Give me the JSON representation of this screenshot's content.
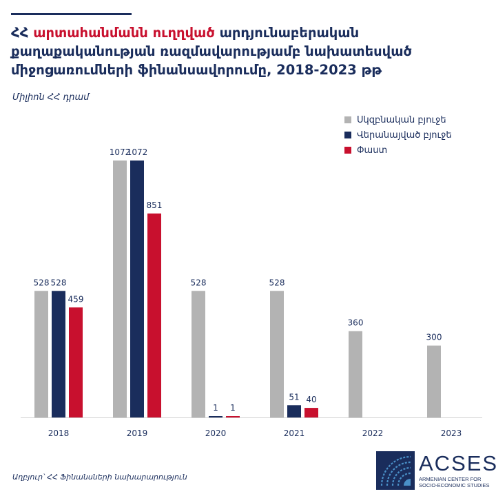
{
  "title": {
    "part1": "ՀՀ ",
    "part2": "արտահանմանն ուղղված",
    "part3": " արդյունաբերական քաղաքականության ռազմավարությամբ նախատեսված միջոցառումների ֆինանսավորումը, 2018-2023 թթ"
  },
  "unit_label": "Միլիոն ՀՀ դրամ",
  "source": "Աղբյուր՝ ՀՀ Ֆինանսների նախարարություն",
  "logo": {
    "name": "ACSES",
    "subtitle": "ARMENIAN CENTER FOR SOCIO-ECONOMIC STUDIES"
  },
  "colors": {
    "accent": "#c8102e",
    "navy": "#1a2d5c",
    "gray": "#b3b3b3"
  },
  "chart_data": {
    "type": "bar",
    "title": "ՀՀ արտահանմանն ուղղված արդյունաբերական քաղաքականության ռազմավարությամբ նախատեսված միջոցառումների ֆինանսավորումը, 2018-2023 թթ",
    "xlabel": "",
    "ylabel": "Միլիոն ՀՀ դրամ",
    "ylim": [
      0,
      1100
    ],
    "grid": false,
    "legend_position": "top-right",
    "categories": [
      "2018",
      "2019",
      "2020",
      "2021",
      "2022",
      "2023"
    ],
    "series": [
      {
        "name": "Սկզբնական բյուջե",
        "color": "#b3b3b3",
        "values": [
          528,
          1072,
          528,
          528,
          360,
          300
        ]
      },
      {
        "name": "Վերանայված բյուջե",
        "color": "#1a2d5c",
        "values": [
          528,
          1072,
          1,
          51,
          null,
          null
        ]
      },
      {
        "name": "Փաստ",
        "color": "#c8102e",
        "values": [
          459,
          851,
          1,
          40,
          null,
          null
        ]
      }
    ]
  }
}
